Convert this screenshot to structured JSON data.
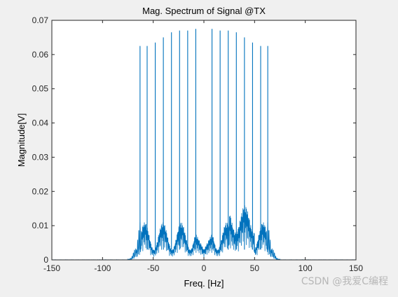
{
  "watermark": "CSDN @我爱C编程",
  "chart_data": {
    "type": "line",
    "title": "Mag. Spectrum of Signal @TX",
    "xlabel": "Freq. [Hz]",
    "ylabel": "Magnitude[V]",
    "xlim": [
      -150,
      150
    ],
    "ylim": [
      0,
      0.07
    ],
    "xticks": [
      -150,
      -100,
      -50,
      0,
      50,
      100,
      150
    ],
    "yticks": [
      0,
      0.01,
      0.02,
      0.03,
      0.04,
      0.05,
      0.06,
      0.07
    ],
    "xtick_labels": [
      "-150",
      "-100",
      "-50",
      "0",
      "50",
      "100",
      "150"
    ],
    "ytick_labels": [
      "0",
      "0.01",
      "0.02",
      "0.03",
      "0.04",
      "0.05",
      "0.06",
      "0.07"
    ],
    "grid": false,
    "line_color": "#0072BD",
    "series": [
      {
        "peaks": [
          {
            "x": -63,
            "y": 0.0625
          },
          {
            "x": -56,
            "y": 0.0625
          },
          {
            "x": -48,
            "y": 0.0635
          },
          {
            "x": -40,
            "y": 0.065
          },
          {
            "x": -32,
            "y": 0.0665
          },
          {
            "x": -24,
            "y": 0.067
          },
          {
            "x": -16,
            "y": 0.067
          },
          {
            "x": -8,
            "y": 0.0675
          },
          {
            "x": 8,
            "y": 0.0675
          },
          {
            "x": 16,
            "y": 0.067
          },
          {
            "x": 24,
            "y": 0.067
          },
          {
            "x": 32,
            "y": 0.0665
          },
          {
            "x": 40,
            "y": 0.065
          },
          {
            "x": 48,
            "y": 0.0635
          },
          {
            "x": 56,
            "y": 0.0625
          },
          {
            "x": 63,
            "y": 0.0625
          }
        ]
      }
    ]
  }
}
